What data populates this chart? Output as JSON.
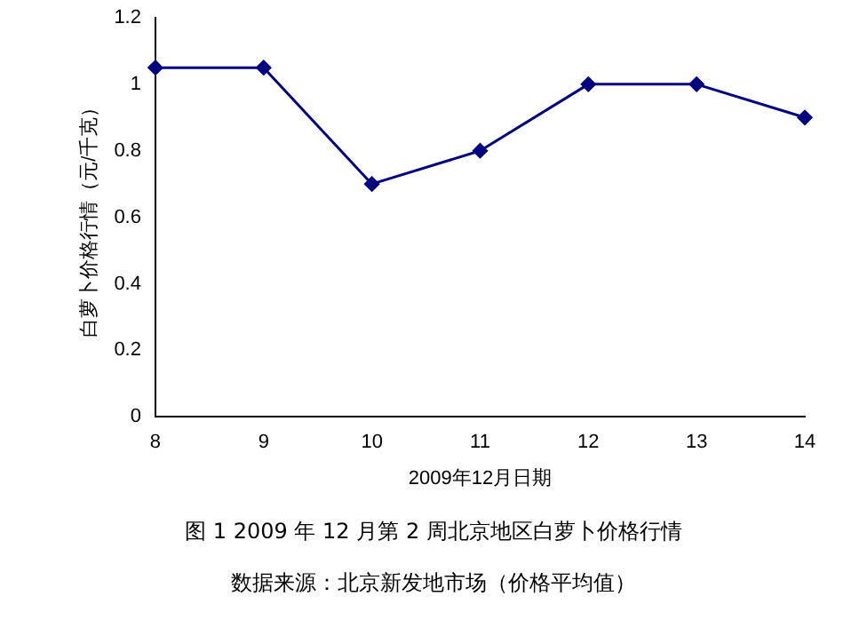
{
  "chart_data": {
    "type": "line",
    "title": "图 1 2009 年 12 月第 2 周北京地区白萝卜价格行情",
    "xlabel": "2009年12月日期",
    "ylabel": "白萝卜价格行情（元/千克）",
    "categories": [
      "8",
      "9",
      "10",
      "11",
      "12",
      "13",
      "14"
    ],
    "series": [
      {
        "color": "#000080",
        "values": [
          1.05,
          1.05,
          0.7,
          0.8,
          1.0,
          1.0,
          0.9
        ]
      }
    ],
    "ylim": [
      0,
      1.2
    ],
    "yticks": [
      0,
      {
        "value": 0.2,
        "label": "0.2"
      },
      {
        "value": 0.4,
        "label": "0.4"
      },
      {
        "value": 0.6,
        "label": "0.6"
      },
      {
        "value": 0.8,
        "label": "0.8"
      },
      1,
      {
        "value": 1.2,
        "label": "1.2"
      }
    ],
    "grid": false,
    "legend": false,
    "marker": "diamond",
    "line_style": "solid",
    "annotations": [
      "数据来源：北京新发地市场（价格平均值）"
    ]
  }
}
